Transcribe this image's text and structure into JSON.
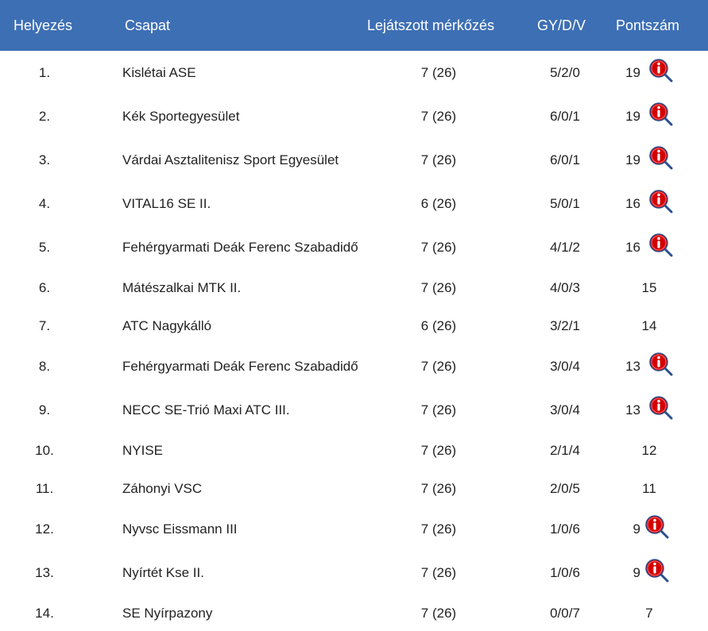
{
  "header": {
    "rank": "Helyezés",
    "team": "Csapat",
    "played": "Lejátszott mérkőzés",
    "record": "GY/D/V",
    "points": "Pontszám"
  },
  "colors": {
    "header_bg": "#3d6fb4",
    "header_text": "#ffffff",
    "info_icon_red": "#d40000",
    "info_icon_ring": "#2b4f8f"
  },
  "rows": [
    {
      "rank": "1.",
      "team": "Kislétai ASE",
      "played": "7 (26)",
      "record": "5/2/0",
      "points": "19",
      "icon": "info-magnifier-icon"
    },
    {
      "rank": "2.",
      "team": "Kék Sportegyesület",
      "played": "7 (26)",
      "record": "6/0/1",
      "points": "19",
      "icon": "info-magnifier-icon"
    },
    {
      "rank": "3.",
      "team": "Várdai Asztalitenisz Sport Egyesület",
      "played": "7 (26)",
      "record": "6/0/1",
      "points": "19",
      "icon": "info-magnifier-icon"
    },
    {
      "rank": "4.",
      "team": "VITAL16 SE II.",
      "played": "6 (26)",
      "record": "5/0/1",
      "points": "16",
      "icon": "info-magnifier-icon"
    },
    {
      "rank": "5.",
      "team": "Fehérgyarmati Deák Ferenc Szabadidő",
      "played": "7 (26)",
      "record": "4/1/2",
      "points": "16",
      "icon": "info-magnifier-icon"
    },
    {
      "rank": "6.",
      "team": "Mátészalkai MTK II.",
      "played": "7 (26)",
      "record": "4/0/3",
      "points": "15",
      "icon": ""
    },
    {
      "rank": "7.",
      "team": "ATC Nagykálló",
      "played": "6 (26)",
      "record": "3/2/1",
      "points": "14",
      "icon": ""
    },
    {
      "rank": "8.",
      "team": "Fehérgyarmati Deák Ferenc Szabadidő",
      "played": "7 (26)",
      "record": "3/0/4",
      "points": "13",
      "icon": "info-magnifier-icon"
    },
    {
      "rank": "9.",
      "team": "NECC SE-Trió Maxi ATC III.",
      "played": "7 (26)",
      "record": "3/0/4",
      "points": "13",
      "icon": "info-magnifier-icon"
    },
    {
      "rank": "10.",
      "team": "NYISE",
      "played": "7 (26)",
      "record": "2/1/4",
      "points": "12",
      "icon": ""
    },
    {
      "rank": "11.",
      "team": "Záhonyi VSC",
      "played": "7 (26)",
      "record": "2/0/5",
      "points": "11",
      "icon": ""
    },
    {
      "rank": "12.",
      "team": "Nyvsc Eissmann III",
      "played": "7 (26)",
      "record": "1/0/6",
      "points": "9",
      "icon": "info-magnifier-icon"
    },
    {
      "rank": "13.",
      "team": "Nyírtét Kse II.",
      "played": "7 (26)",
      "record": "1/0/6",
      "points": "9",
      "icon": "info-magnifier-icon"
    },
    {
      "rank": "14.",
      "team": "SE Nyírpazony",
      "played": "7 (26)",
      "record": "0/0/7",
      "points": "7",
      "icon": ""
    }
  ]
}
